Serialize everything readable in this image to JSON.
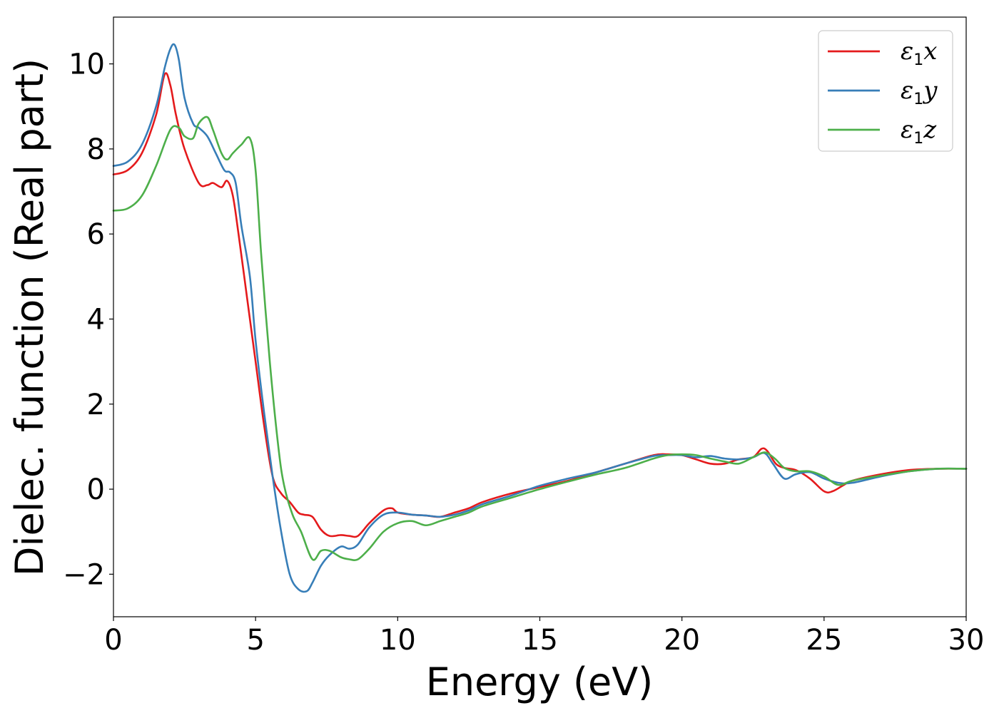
{
  "chart_data": {
    "type": "line",
    "title": "",
    "xlabel": "Energy (eV)",
    "ylabel": "Dielec. function (Real part)",
    "xlim": [
      0,
      30
    ],
    "ylim": [
      -3.0,
      11.1
    ],
    "xticks": [
      0,
      5,
      10,
      15,
      20,
      25,
      30
    ],
    "xtick_labels": [
      "0",
      "5",
      "10",
      "15",
      "20",
      "25",
      "30"
    ],
    "yticks": [
      -2,
      0,
      2,
      4,
      6,
      8,
      10
    ],
    "ytick_labels": [
      "−2",
      "0",
      "2",
      "4",
      "6",
      "8",
      "10"
    ],
    "grid": false,
    "legend_position": "top-right",
    "series": [
      {
        "name": "ε₁x",
        "legend_main": "ε",
        "legend_sub": "1",
        "legend_var": "x",
        "color": "#e41a1c",
        "x": [
          0,
          0.5,
          1.0,
          1.5,
          1.8,
          2.0,
          2.2,
          2.5,
          3.0,
          3.3,
          3.5,
          3.8,
          4.0,
          4.2,
          4.4,
          4.7,
          5.0,
          5.3,
          5.6,
          5.9,
          6.2,
          6.5,
          6.7,
          7.0,
          7.3,
          7.6,
          8.0,
          8.3,
          8.6,
          9.0,
          9.5,
          9.8,
          10.0,
          10.5,
          11.0,
          11.5,
          12.0,
          12.5,
          13.0,
          14.0,
          15.0,
          16.0,
          17.0,
          18.0,
          19.0,
          19.5,
          20.0,
          20.5,
          21.0,
          21.5,
          22.0,
          22.5,
          22.8,
          23.0,
          23.3,
          23.6,
          24.0,
          24.5,
          25.0,
          25.3,
          25.7,
          26.0,
          27.0,
          28.0,
          29.0,
          30.0
        ],
        "y": [
          7.4,
          7.5,
          7.9,
          8.8,
          9.75,
          9.5,
          8.8,
          8.0,
          7.2,
          7.15,
          7.2,
          7.1,
          7.25,
          6.9,
          6.0,
          4.5,
          3.0,
          1.5,
          0.3,
          -0.1,
          -0.3,
          -0.55,
          -0.6,
          -0.65,
          -0.95,
          -1.1,
          -1.08,
          -1.1,
          -1.1,
          -0.8,
          -0.5,
          -0.45,
          -0.55,
          -0.6,
          -0.62,
          -0.65,
          -0.55,
          -0.45,
          -0.3,
          -0.1,
          0.05,
          0.2,
          0.4,
          0.6,
          0.8,
          0.82,
          0.8,
          0.7,
          0.6,
          0.6,
          0.7,
          0.75,
          0.95,
          0.9,
          0.6,
          0.5,
          0.45,
          0.25,
          -0.05,
          -0.05,
          0.1,
          0.2,
          0.35,
          0.45,
          0.48,
          0.48
        ]
      },
      {
        "name": "ε₁y",
        "legend_main": "ε",
        "legend_sub": "1",
        "legend_var": "y",
        "color": "#377eb8",
        "x": [
          0,
          0.5,
          1.0,
          1.5,
          1.8,
          2.0,
          2.15,
          2.3,
          2.5,
          2.8,
          3.0,
          3.3,
          3.6,
          3.9,
          4.1,
          4.3,
          4.5,
          4.8,
          5.0,
          5.3,
          5.6,
          5.9,
          6.2,
          6.5,
          6.8,
          7.0,
          7.3,
          7.6,
          8.0,
          8.3,
          8.6,
          9.0,
          9.5,
          10.0,
          10.5,
          11.0,
          11.5,
          12.0,
          12.5,
          13.0,
          14.0,
          15.0,
          16.0,
          17.0,
          18.0,
          19.0,
          19.5,
          20.0,
          20.5,
          21.0,
          21.5,
          22.0,
          22.5,
          22.9,
          23.2,
          23.6,
          24.0,
          24.5,
          25.0,
          25.5,
          26.0,
          27.0,
          28.0,
          29.0,
          30.0
        ],
        "y": [
          7.6,
          7.7,
          8.1,
          9.0,
          9.9,
          10.35,
          10.45,
          10.1,
          9.2,
          8.6,
          8.5,
          8.3,
          7.9,
          7.5,
          7.45,
          7.2,
          6.2,
          5.0,
          3.5,
          1.8,
          0.3,
          -1.0,
          -2.0,
          -2.35,
          -2.4,
          -2.2,
          -1.8,
          -1.55,
          -1.35,
          -1.4,
          -1.3,
          -0.9,
          -0.6,
          -0.55,
          -0.6,
          -0.62,
          -0.65,
          -0.6,
          -0.5,
          -0.35,
          -0.15,
          0.08,
          0.25,
          0.4,
          0.6,
          0.78,
          0.8,
          0.8,
          0.75,
          0.78,
          0.72,
          0.7,
          0.75,
          0.85,
          0.6,
          0.25,
          0.35,
          0.4,
          0.25,
          0.15,
          0.15,
          0.3,
          0.42,
          0.48,
          0.48
        ]
      },
      {
        "name": "ε₁z",
        "legend_main": "ε",
        "legend_sub": "1",
        "legend_var": "z",
        "color": "#4daf4a",
        "x": [
          0,
          0.5,
          1.0,
          1.5,
          2.0,
          2.3,
          2.5,
          2.8,
          3.0,
          3.3,
          3.5,
          3.8,
          4.0,
          4.2,
          4.5,
          4.8,
          5.0,
          5.2,
          5.5,
          5.8,
          6.0,
          6.3,
          6.6,
          7.0,
          7.3,
          7.6,
          8.0,
          8.3,
          8.6,
          9.0,
          9.5,
          10.0,
          10.5,
          11.0,
          11.5,
          12.0,
          12.5,
          13.0,
          14.0,
          15.0,
          16.0,
          17.0,
          18.0,
          19.0,
          19.5,
          20.0,
          20.5,
          21.0,
          21.5,
          22.0,
          22.5,
          22.8,
          23.0,
          23.3,
          23.6,
          24.0,
          24.5,
          25.0,
          25.5,
          26.0,
          27.0,
          28.0,
          29.0,
          30.0
        ],
        "y": [
          6.55,
          6.6,
          6.9,
          7.6,
          8.45,
          8.5,
          8.3,
          8.25,
          8.6,
          8.75,
          8.45,
          7.9,
          7.75,
          7.9,
          8.1,
          8.25,
          7.5,
          5.5,
          3.0,
          1.0,
          0.1,
          -0.6,
          -1.0,
          -1.65,
          -1.45,
          -1.45,
          -1.6,
          -1.65,
          -1.65,
          -1.4,
          -1.0,
          -0.8,
          -0.75,
          -0.85,
          -0.75,
          -0.65,
          -0.55,
          -0.4,
          -0.2,
          0.0,
          0.18,
          0.35,
          0.5,
          0.72,
          0.8,
          0.82,
          0.8,
          0.72,
          0.65,
          0.6,
          0.75,
          0.85,
          0.85,
          0.7,
          0.5,
          0.42,
          0.42,
          0.3,
          0.1,
          0.2,
          0.32,
          0.42,
          0.48,
          0.48
        ]
      }
    ]
  }
}
